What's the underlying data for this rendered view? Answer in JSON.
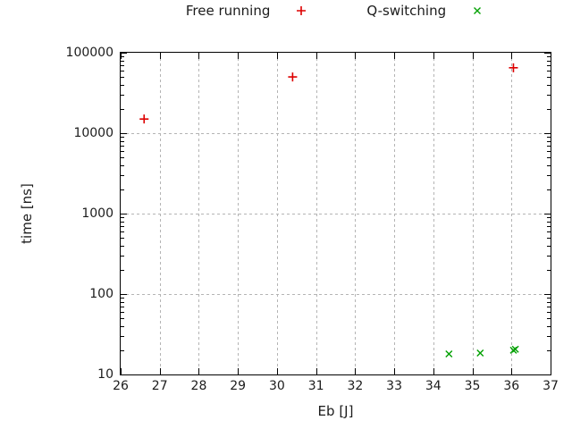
{
  "chart_data": {
    "type": "scatter",
    "title": "",
    "x_axis": {
      "label": "Eb [J]",
      "min": 26,
      "max": 37,
      "ticks": [
        26,
        27,
        28,
        29,
        30,
        31,
        32,
        33,
        34,
        35,
        36,
        37
      ]
    },
    "y_axis": {
      "label": "time [ns]",
      "scale": "log",
      "min": 10,
      "max": 100000,
      "ticks": [
        10,
        100,
        1000,
        10000,
        100000
      ],
      "tick_labels": [
        "10",
        "100",
        "1000",
        "10000",
        "100000"
      ]
    },
    "grid": {
      "show": true,
      "style": "dashed",
      "color": "#b4b4b4"
    },
    "legend_position": "top-outside-center",
    "series": [
      {
        "name": "Free running",
        "marker": "plus",
        "color": "#dd0000",
        "points": [
          [
            26.6,
            15000
          ],
          [
            30.4,
            50000
          ],
          [
            36.05,
            65000
          ]
        ]
      },
      {
        "name": "Q-switching",
        "marker": "cross",
        "color": "#00a000",
        "points": [
          [
            34.4,
            18
          ],
          [
            35.2,
            18.5
          ],
          [
            36.05,
            20
          ],
          [
            36.1,
            20.6
          ]
        ]
      }
    ]
  },
  "style": {
    "axis_color": "#000000",
    "text_color": "#1c1c1c"
  }
}
